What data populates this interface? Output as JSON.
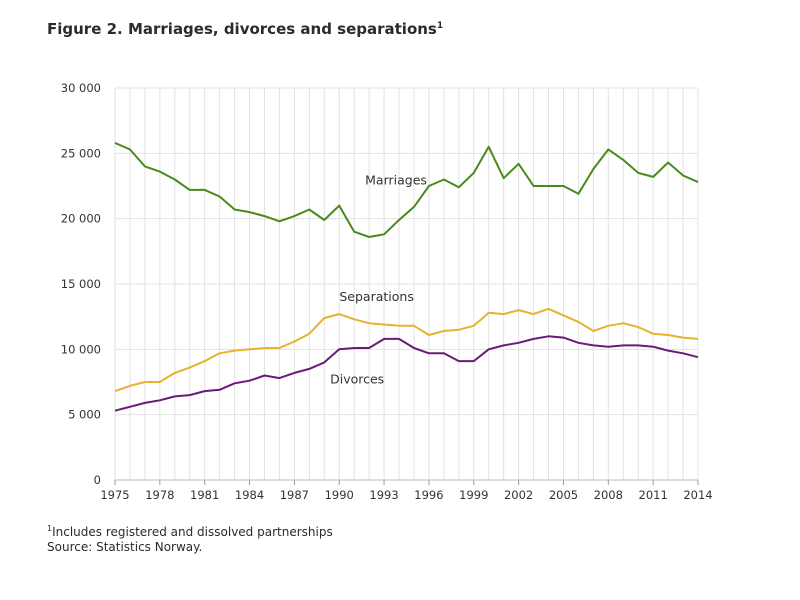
{
  "chart_data": {
    "type": "line",
    "title": "Figure 2.  Marriages, divorces and separations",
    "title_marker": "1",
    "xlabel": "",
    "ylabel": "",
    "xlim": [
      1975,
      2014
    ],
    "ylim": [
      0,
      30000
    ],
    "y_ticks": [
      {
        "value": 0,
        "label": "0"
      },
      {
        "value": 5000,
        "label": "5 000"
      },
      {
        "value": 10000,
        "label": "10 000"
      },
      {
        "value": 15000,
        "label": "15 000"
      },
      {
        "value": 20000,
        "label": "20 000"
      },
      {
        "value": 25000,
        "label": "25 000"
      },
      {
        "value": 30000,
        "label": "30 000"
      }
    ],
    "x_tick_labels": [
      1975,
      1978,
      1981,
      1984,
      1987,
      1990,
      1993,
      1996,
      1999,
      2002,
      2005,
      2008,
      2011,
      2014
    ],
    "grid": true,
    "legend": "none",
    "x": [
      1975,
      1976,
      1977,
      1978,
      1979,
      1980,
      1981,
      1982,
      1983,
      1984,
      1985,
      1986,
      1987,
      1988,
      1989,
      1990,
      1991,
      1992,
      1993,
      1994,
      1995,
      1996,
      1997,
      1998,
      1999,
      2000,
      2001,
      2002,
      2003,
      2004,
      2005,
      2006,
      2007,
      2008,
      2009,
      2010,
      2011,
      2012,
      2013,
      2014
    ],
    "series": [
      {
        "name": "Marriages",
        "color": "#4a8a1c",
        "values": [
          25800,
          25300,
          24000,
          23600,
          23000,
          22200,
          22200,
          21700,
          20700,
          20500,
          20200,
          19800,
          20200,
          20700,
          19900,
          21000,
          19000,
          18600,
          18800,
          19900,
          20900,
          22500,
          23000,
          22400,
          23500,
          25500,
          23100,
          24200,
          22500,
          22500,
          22500,
          21900,
          23800,
          25300,
          24500,
          23500,
          23200,
          24300,
          23300,
          22800
        ]
      },
      {
        "name": "Separations",
        "color": "#e8b230",
        "values": [
          6800,
          7200,
          7500,
          7500,
          8200,
          8600,
          9100,
          9700,
          9900,
          10000,
          10100,
          10100,
          10600,
          11200,
          12400,
          12700,
          12300,
          12000,
          11900,
          11800,
          11800,
          11100,
          11400,
          11500,
          11800,
          12800,
          12700,
          13000,
          12700,
          13100,
          12600,
          12100,
          11400,
          11800,
          12000,
          11700,
          11200,
          11100,
          10900,
          10800
        ]
      },
      {
        "name": "Divorces",
        "color": "#6a1b7a",
        "values": [
          5300,
          5600,
          5900,
          6100,
          6400,
          6500,
          6800,
          6900,
          7400,
          7600,
          8000,
          7800,
          8200,
          8500,
          9000,
          10000,
          10100,
          10100,
          10800,
          10800,
          10100,
          9700,
          9700,
          9100,
          9100,
          10000,
          10300,
          10500,
          10800,
          11000,
          10900,
          10500,
          10300,
          10200,
          10300,
          10300,
          10200,
          9900,
          9700,
          9400
        ]
      }
    ],
    "series_labels": [
      "Marriages",
      "Separations",
      "Divorces"
    ]
  },
  "footnote": {
    "marker": "1",
    "text": "Includes registered and dissolved partnerships"
  },
  "source": "Source: Statistics Norway."
}
